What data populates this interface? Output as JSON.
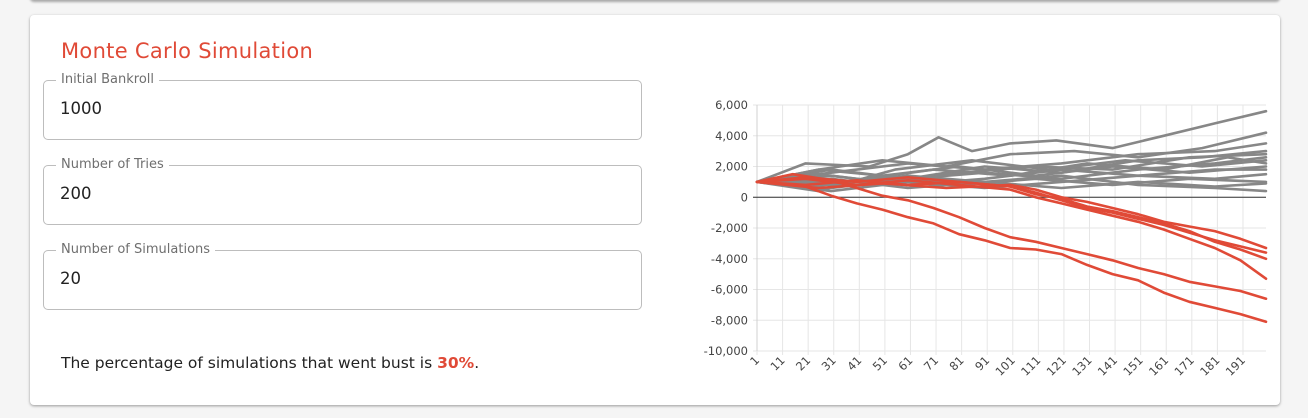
{
  "card": {
    "title": "Monte Carlo Simulation"
  },
  "fields": [
    {
      "label": "Initial Bankroll",
      "value": "1000"
    },
    {
      "label": "Number of Tries",
      "value": "200"
    },
    {
      "label": "Number of Simulations",
      "value": "20"
    }
  ],
  "result": {
    "prefix": "The percentage of simulations that went bust is ",
    "percent": "30%",
    "suffix": "."
  },
  "colors": {
    "accent": "#e04a37",
    "alive_series": "#878787",
    "bust_series": "#e04a37"
  },
  "chart_data": {
    "type": "line",
    "title": "",
    "xlabel": "",
    "ylabel": "",
    "x_range": [
      1,
      200
    ],
    "ylim": [
      -10000,
      6000
    ],
    "y_ticks": [
      6000,
      4000,
      2000,
      0,
      -2000,
      -4000,
      -6000,
      -8000,
      -10000
    ],
    "y_tick_labels": [
      "6,000",
      "4,000",
      "2,000",
      "0",
      "-2,000",
      "-4,000",
      "-6,000",
      "-8,000",
      "-10,000"
    ],
    "x_tick_labels": [
      "1",
      "11",
      "21",
      "31",
      "41",
      "51",
      "61",
      "71",
      "81",
      "91",
      "101",
      "111",
      "121",
      "131",
      "141",
      "151",
      "161",
      "171",
      "181",
      "191"
    ],
    "grid": true,
    "legend": "none",
    "series": [
      {
        "status": "alive",
        "points": [
          [
            1,
            1000
          ],
          [
            20,
            2200
          ],
          [
            45,
            2000
          ],
          [
            60,
            2800
          ],
          [
            72,
            3900
          ],
          [
            85,
            3000
          ],
          [
            100,
            3500
          ],
          [
            118,
            3700
          ],
          [
            140,
            3200
          ],
          [
            160,
            4000
          ],
          [
            180,
            4800
          ],
          [
            200,
            5600
          ]
        ]
      },
      {
        "status": "alive",
        "points": [
          [
            1,
            1000
          ],
          [
            25,
            1800
          ],
          [
            50,
            2400
          ],
          [
            75,
            2000
          ],
          [
            100,
            2800
          ],
          [
            125,
            3000
          ],
          [
            150,
            2600
          ],
          [
            175,
            3200
          ],
          [
            200,
            4200
          ]
        ]
      },
      {
        "status": "alive",
        "points": [
          [
            1,
            1000
          ],
          [
            30,
            1600
          ],
          [
            60,
            2200
          ],
          [
            90,
            1800
          ],
          [
            120,
            2200
          ],
          [
            150,
            2800
          ],
          [
            180,
            3000
          ],
          [
            200,
            3500
          ]
        ]
      },
      {
        "status": "alive",
        "points": [
          [
            1,
            1000
          ],
          [
            30,
            1800
          ],
          [
            60,
            1200
          ],
          [
            90,
            2000
          ],
          [
            120,
            1600
          ],
          [
            150,
            2400
          ],
          [
            175,
            2600
          ],
          [
            200,
            3000
          ]
        ]
      },
      {
        "status": "alive",
        "points": [
          [
            1,
            1000
          ],
          [
            20,
            1600
          ],
          [
            50,
            1000
          ],
          [
            80,
            1600
          ],
          [
            110,
            2000
          ],
          [
            140,
            1800
          ],
          [
            170,
            2600
          ],
          [
            200,
            2800
          ]
        ]
      },
      {
        "status": "alive",
        "points": [
          [
            1,
            1000
          ],
          [
            30,
            600
          ],
          [
            60,
            1200
          ],
          [
            90,
            1600
          ],
          [
            120,
            1200
          ],
          [
            150,
            1800
          ],
          [
            180,
            2200
          ],
          [
            200,
            2600
          ]
        ]
      },
      {
        "status": "alive",
        "points": [
          [
            1,
            1000
          ],
          [
            25,
            1800
          ],
          [
            50,
            1400
          ],
          [
            80,
            2000
          ],
          [
            110,
            1400
          ],
          [
            140,
            2000
          ],
          [
            170,
            1600
          ],
          [
            200,
            2000
          ]
        ]
      },
      {
        "status": "alive",
        "points": [
          [
            1,
            1000
          ],
          [
            30,
            1400
          ],
          [
            60,
            800
          ],
          [
            90,
            1200
          ],
          [
            120,
            1800
          ],
          [
            150,
            1400
          ],
          [
            180,
            1800
          ],
          [
            200,
            1800
          ]
        ]
      },
      {
        "status": "alive",
        "points": [
          [
            1,
            1000
          ],
          [
            30,
            400
          ],
          [
            60,
            1000
          ],
          [
            90,
            600
          ],
          [
            120,
            1000
          ],
          [
            150,
            1400
          ],
          [
            180,
            1200
          ],
          [
            200,
            1500
          ]
        ]
      },
      {
        "status": "alive",
        "points": [
          [
            1,
            1000
          ],
          [
            20,
            600
          ],
          [
            50,
            1400
          ],
          [
            80,
            800
          ],
          [
            110,
            1200
          ],
          [
            140,
            800
          ],
          [
            170,
            1200
          ],
          [
            200,
            1000
          ]
        ]
      },
      {
        "status": "alive",
        "points": [
          [
            1,
            1000
          ],
          [
            30,
            1200
          ],
          [
            60,
            600
          ],
          [
            90,
            1000
          ],
          [
            120,
            600
          ],
          [
            150,
            1000
          ],
          [
            180,
            700
          ],
          [
            200,
            900
          ]
        ]
      },
      {
        "status": "alive",
        "points": [
          [
            1,
            1000
          ],
          [
            30,
            800
          ],
          [
            60,
            1400
          ],
          [
            90,
            1000
          ],
          [
            120,
            1400
          ],
          [
            150,
            800
          ],
          [
            180,
            600
          ],
          [
            200,
            400
          ]
        ]
      },
      {
        "status": "alive",
        "points": [
          [
            1,
            1000
          ],
          [
            35,
            1000
          ],
          [
            70,
            1800
          ],
          [
            100,
            1400
          ],
          [
            130,
            2200
          ],
          [
            160,
            1800
          ],
          [
            185,
            2600
          ],
          [
            200,
            2200
          ]
        ]
      },
      {
        "status": "alive",
        "points": [
          [
            1,
            1000
          ],
          [
            25,
            400
          ],
          [
            55,
            1800
          ],
          [
            85,
            2400
          ],
          [
            115,
            1800
          ],
          [
            145,
            2400
          ],
          [
            175,
            2000
          ],
          [
            200,
            2400
          ]
        ]
      },
      {
        "status": "bust",
        "points": [
          [
            1,
            1000
          ],
          [
            20,
            700
          ],
          [
            30,
            100
          ],
          [
            40,
            -400
          ],
          [
            50,
            -800
          ],
          [
            60,
            -1300
          ],
          [
            70,
            -1700
          ],
          [
            80,
            -2400
          ],
          [
            90,
            -2800
          ],
          [
            100,
            -3300
          ],
          [
            110,
            -3400
          ],
          [
            120,
            -3700
          ],
          [
            130,
            -4400
          ],
          [
            140,
            -5000
          ],
          [
            150,
            -5400
          ],
          [
            160,
            -6200
          ],
          [
            170,
            -6800
          ],
          [
            180,
            -7200
          ],
          [
            190,
            -7600
          ],
          [
            200,
            -8100
          ]
        ]
      },
      {
        "status": "bust",
        "points": [
          [
            1,
            1000
          ],
          [
            15,
            1500
          ],
          [
            30,
            1100
          ],
          [
            40,
            600
          ],
          [
            50,
            100
          ],
          [
            60,
            -200
          ],
          [
            70,
            -700
          ],
          [
            80,
            -1300
          ],
          [
            90,
            -2000
          ],
          [
            100,
            -2600
          ],
          [
            110,
            -2900
          ],
          [
            120,
            -3300
          ],
          [
            130,
            -3700
          ],
          [
            140,
            -4100
          ],
          [
            150,
            -4600
          ],
          [
            160,
            -5000
          ],
          [
            170,
            -5500
          ],
          [
            180,
            -5800
          ],
          [
            190,
            -6100
          ],
          [
            200,
            -6600
          ]
        ]
      },
      {
        "status": "bust",
        "points": [
          [
            1,
            1000
          ],
          [
            20,
            1200
          ],
          [
            40,
            800
          ],
          [
            60,
            1100
          ],
          [
            80,
            800
          ],
          [
            100,
            500
          ],
          [
            110,
            0
          ],
          [
            120,
            -400
          ],
          [
            130,
            -800
          ],
          [
            140,
            -1200
          ],
          [
            150,
            -1600
          ],
          [
            160,
            -2100
          ],
          [
            170,
            -2700
          ],
          [
            180,
            -3300
          ],
          [
            190,
            -4100
          ],
          [
            200,
            -5300
          ]
        ]
      },
      {
        "status": "bust",
        "points": [
          [
            1,
            1000
          ],
          [
            20,
            1300
          ],
          [
            40,
            1000
          ],
          [
            60,
            1300
          ],
          [
            80,
            1000
          ],
          [
            100,
            700
          ],
          [
            110,
            200
          ],
          [
            120,
            -100
          ],
          [
            130,
            -600
          ],
          [
            140,
            -900
          ],
          [
            150,
            -1300
          ],
          [
            160,
            -1700
          ],
          [
            170,
            -2200
          ],
          [
            180,
            -2900
          ],
          [
            190,
            -3400
          ],
          [
            200,
            -4000
          ]
        ]
      },
      {
        "status": "bust",
        "points": [
          [
            1,
            1000
          ],
          [
            20,
            800
          ],
          [
            40,
            1100
          ],
          [
            60,
            800
          ],
          [
            80,
            1000
          ],
          [
            100,
            700
          ],
          [
            110,
            300
          ],
          [
            120,
            -200
          ],
          [
            130,
            -700
          ],
          [
            140,
            -1000
          ],
          [
            150,
            -1400
          ],
          [
            160,
            -1800
          ],
          [
            170,
            -2300
          ],
          [
            180,
            -2800
          ],
          [
            190,
            -3200
          ],
          [
            200,
            -3600
          ]
        ]
      },
      {
        "status": "bust",
        "points": [
          [
            1,
            1000
          ],
          [
            25,
            600
          ],
          [
            50,
            900
          ],
          [
            75,
            600
          ],
          [
            100,
            800
          ],
          [
            110,
            500
          ],
          [
            120,
            0
          ],
          [
            130,
            -300
          ],
          [
            140,
            -700
          ],
          [
            150,
            -1100
          ],
          [
            160,
            -1600
          ],
          [
            170,
            -1900
          ],
          [
            180,
            -2200
          ],
          [
            190,
            -2700
          ],
          [
            200,
            -3300
          ]
        ]
      }
    ]
  }
}
